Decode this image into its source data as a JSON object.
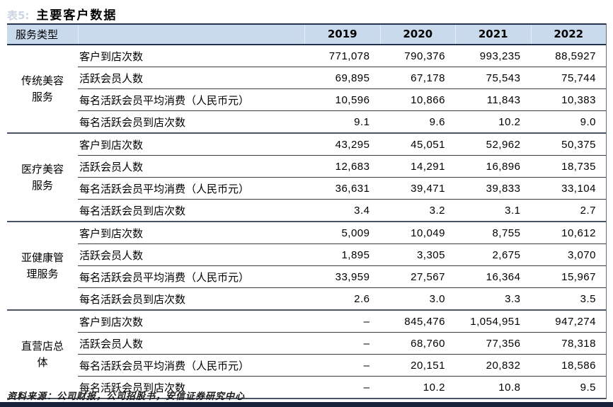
{
  "page": {
    "table_tag": "表5:",
    "title": "主要客户数据",
    "source": "资料来源：公司财报，公司招股书，安信证券研究中心"
  },
  "colors": {
    "header_bg": "#C9DAEC",
    "heavy_border": "#23344E",
    "group_separator": "#4A5563",
    "bottom_bar": "#162338"
  },
  "table": {
    "header": {
      "service_type_label": "服务类型",
      "years": [
        "2019",
        "2020",
        "2021",
        "2022"
      ]
    },
    "groups": [
      {
        "name": "传统美容\n服务",
        "rows": [
          {
            "label": "客户到店次数",
            "values": [
              "771,078",
              "790,376",
              "993,235",
              "88,5927"
            ]
          },
          {
            "label": "活跃会员人数",
            "values": [
              "69,895",
              "67,178",
              "75,543",
              "75,744"
            ]
          },
          {
            "label": "每名活跃会员平均消费（人民币元）",
            "values": [
              "10,596",
              "10,866",
              "11,843",
              "10,383"
            ]
          },
          {
            "label": "每名活跃会员到店次数",
            "values": [
              "9.1",
              "9.6",
              "10.2",
              "9.0"
            ]
          }
        ]
      },
      {
        "name": "医疗美容\n服务",
        "rows": [
          {
            "label": "客户到店次数",
            "values": [
              "43,295",
              "45,051",
              "52,962",
              "50,375"
            ]
          },
          {
            "label": "活跃会员人数",
            "values": [
              "12,683",
              "14,291",
              "16,896",
              "18,735"
            ]
          },
          {
            "label": "每名活跃会员平均消费（人民币元）",
            "values": [
              "36,631",
              "39,471",
              "39,833",
              "33,104"
            ]
          },
          {
            "label": "每名活跃会员到店次数",
            "values": [
              "3.4",
              "3.2",
              "3.1",
              "2.7"
            ]
          }
        ]
      },
      {
        "name": "亚健康管\n理服务",
        "rows": [
          {
            "label": "客户到店次数",
            "values": [
              "5,009",
              "10,049",
              "8,755",
              "10,612"
            ]
          },
          {
            "label": "活跃会员人数",
            "values": [
              "1,895",
              "3,305",
              "2,675",
              "3,070"
            ]
          },
          {
            "label": "每名活跃会员平均消费（人民币元）",
            "values": [
              "33,959",
              "27,567",
              "16,364",
              "15,967"
            ]
          },
          {
            "label": "每名活跃会员到店次数",
            "values": [
              "2.6",
              "3.0",
              "3.3",
              "3.5"
            ]
          }
        ]
      },
      {
        "name": "直营店总\n体",
        "rows": [
          {
            "label": "客户到店次数",
            "values": [
              "–",
              "845,476",
              "1,054,951",
              "947,274"
            ]
          },
          {
            "label": "活跃会员人数",
            "values": [
              "–",
              "68,760",
              "77,356",
              "78,318"
            ]
          },
          {
            "label": "每名活跃会员平均消费（人民币元）",
            "values": [
              "–",
              "20,151",
              "20,832",
              "18,586"
            ]
          },
          {
            "label": "每名活跃会员到店次数",
            "values": [
              "–",
              "10.2",
              "10.8",
              "9.5"
            ]
          }
        ]
      }
    ]
  }
}
